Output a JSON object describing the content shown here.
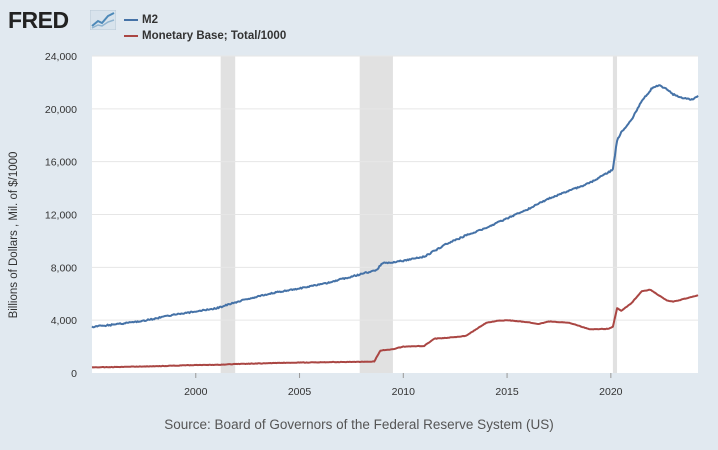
{
  "logo": {
    "text": "FRED"
  },
  "chart_data": {
    "type": "line",
    "title": "",
    "ylabel": "Billions of Dollars , Mil. of $/1000",
    "xlabel": "",
    "xlim": [
      1995.0,
      2024.2
    ],
    "ylim": [
      0,
      24000
    ],
    "yticks": [
      0,
      4000,
      8000,
      12000,
      16000,
      20000,
      24000
    ],
    "ytick_labels": [
      "0",
      "4,000",
      "8,000",
      "12,000",
      "16,000",
      "20,000",
      "24,000"
    ],
    "xticks": [
      2000,
      2005,
      2010,
      2015,
      2020
    ],
    "xtick_labels": [
      "2000",
      "2005",
      "2010",
      "2015",
      "2020"
    ],
    "recessions": [
      [
        2001.2,
        2001.9
      ],
      [
        2007.9,
        2009.5
      ],
      [
        2020.1,
        2020.3
      ]
    ],
    "series": [
      {
        "name": "M2",
        "color": "#4572a7",
        "points": [
          [
            1995.0,
            3500
          ],
          [
            1996,
            3650
          ],
          [
            1997,
            3850
          ],
          [
            1998,
            4100
          ],
          [
            1999,
            4450
          ],
          [
            2000,
            4650
          ],
          [
            2001,
            4900
          ],
          [
            2001.5,
            5150
          ],
          [
            2002,
            5400
          ],
          [
            2003,
            5800
          ],
          [
            2004,
            6150
          ],
          [
            2005,
            6400
          ],
          [
            2006,
            6700
          ],
          [
            2007,
            7100
          ],
          [
            2008,
            7500
          ],
          [
            2008.7,
            7800
          ],
          [
            2009,
            8300
          ],
          [
            2010,
            8500
          ],
          [
            2011,
            8800
          ],
          [
            2012,
            9700
          ],
          [
            2013,
            10400
          ],
          [
            2014,
            11000
          ],
          [
            2015,
            11700
          ],
          [
            2016,
            12400
          ],
          [
            2017,
            13200
          ],
          [
            2018,
            13800
          ],
          [
            2019,
            14400
          ],
          [
            2019.9,
            15200
          ],
          [
            2020.1,
            15400
          ],
          [
            2020.3,
            17600
          ],
          [
            2020.5,
            18200
          ],
          [
            2021,
            19200
          ],
          [
            2021.5,
            20600
          ],
          [
            2022,
            21600
          ],
          [
            2022.3,
            21800
          ],
          [
            2022.7,
            21500
          ],
          [
            2023,
            21100
          ],
          [
            2023.5,
            20800
          ],
          [
            2023.9,
            20700
          ],
          [
            2024.2,
            21000
          ]
        ]
      },
      {
        "name": "Monetary Base; Total/1000",
        "color": "#aa4643",
        "points": [
          [
            1995.0,
            430
          ],
          [
            1996,
            450
          ],
          [
            1997,
            480
          ],
          [
            1998,
            510
          ],
          [
            1999,
            550
          ],
          [
            2000,
            610
          ],
          [
            2001,
            620
          ],
          [
            2002,
            680
          ],
          [
            2003,
            720
          ],
          [
            2004,
            760
          ],
          [
            2005,
            790
          ],
          [
            2006,
            810
          ],
          [
            2007,
            830
          ],
          [
            2008,
            850
          ],
          [
            2008.6,
            880
          ],
          [
            2008.9,
            1700
          ],
          [
            2009.5,
            1800
          ],
          [
            2010,
            2000
          ],
          [
            2011,
            2050
          ],
          [
            2011.5,
            2600
          ],
          [
            2012,
            2650
          ],
          [
            2013,
            2800
          ],
          [
            2014,
            3800
          ],
          [
            2014.5,
            3950
          ],
          [
            2015,
            4000
          ],
          [
            2016,
            3850
          ],
          [
            2016.5,
            3700
          ],
          [
            2017,
            3900
          ],
          [
            2018,
            3800
          ],
          [
            2019,
            3300
          ],
          [
            2019.9,
            3350
          ],
          [
            2020.1,
            3500
          ],
          [
            2020.3,
            4900
          ],
          [
            2020.5,
            4700
          ],
          [
            2021,
            5300
          ],
          [
            2021.5,
            6200
          ],
          [
            2021.9,
            6300
          ],
          [
            2022.3,
            5900
          ],
          [
            2022.7,
            5500
          ],
          [
            2023,
            5400
          ],
          [
            2023.5,
            5600
          ],
          [
            2024,
            5800
          ],
          [
            2024.2,
            5900
          ]
        ]
      }
    ]
  },
  "source": "Source: Board of Governors of the Federal Reserve System (US)"
}
